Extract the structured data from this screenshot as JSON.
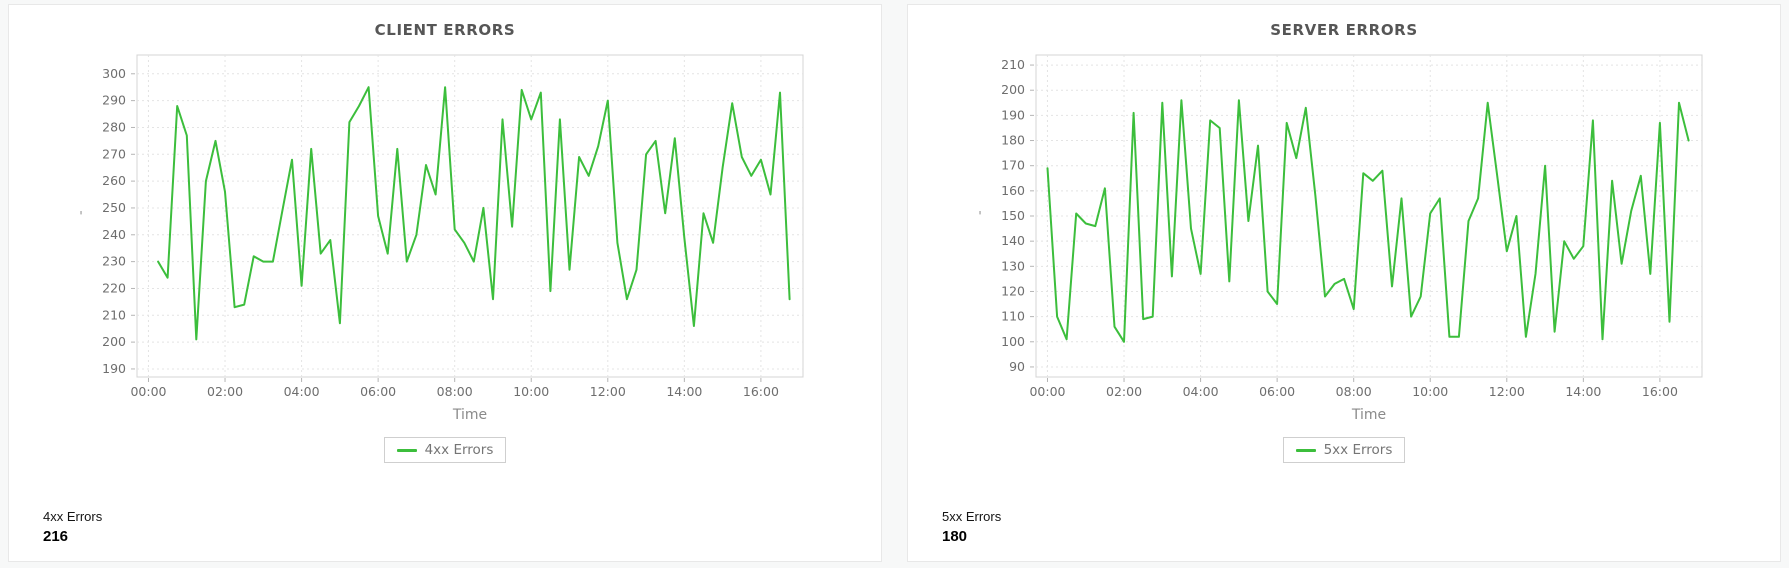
{
  "cards": [
    {
      "title": "CLIENT ERRORS",
      "legend_label": "4xx Errors",
      "stat_label": "4xx Errors",
      "stat_value": "216"
    },
    {
      "title": "SERVER ERRORS",
      "legend_label": "5xx Errors",
      "stat_label": "5xx Errors",
      "stat_value": "180"
    }
  ],
  "chart_data": [
    {
      "type": "line",
      "title": "CLIENT ERRORS",
      "xlabel": "Time",
      "ylabel_mark": "'",
      "grid": true,
      "legend_position": "bottom",
      "x_tick_labels": [
        "00:00",
        "02:00",
        "04:00",
        "06:00",
        "08:00",
        "10:00",
        "12:00",
        "14:00",
        "16:00"
      ],
      "x_tick_minutes": [
        0,
        120,
        240,
        360,
        480,
        600,
        720,
        840,
        960
      ],
      "x_domain_minutes": [
        -18,
        1026
      ],
      "y_ticks": [
        190,
        200,
        210,
        220,
        230,
        240,
        250,
        260,
        270,
        280,
        290,
        300
      ],
      "y_domain": [
        187,
        307
      ],
      "x_start_minute": 15,
      "x_step_minutes": 15,
      "series": [
        {
          "name": "4xx Errors",
          "color": "#3cbe3c",
          "values": [
            230,
            224,
            288,
            277,
            201,
            260,
            275,
            256,
            213,
            214,
            232,
            230,
            230,
            249,
            268,
            221,
            272,
            233,
            238,
            207,
            282,
            288,
            295,
            247,
            233,
            272,
            230,
            240,
            266,
            255,
            295,
            242,
            237,
            230,
            250,
            216,
            283,
            243,
            294,
            283,
            293,
            219,
            283,
            227,
            269,
            262,
            273,
            290,
            237,
            216,
            227,
            270,
            275,
            248,
            276,
            239,
            206,
            248,
            237,
            265,
            289,
            269,
            262,
            268,
            255,
            293,
            216
          ]
        }
      ]
    },
    {
      "type": "line",
      "title": "SERVER ERRORS",
      "xlabel": "Time",
      "ylabel_mark": "'",
      "grid": true,
      "legend_position": "bottom",
      "x_tick_labels": [
        "00:00",
        "02:00",
        "04:00",
        "06:00",
        "08:00",
        "10:00",
        "12:00",
        "14:00",
        "16:00"
      ],
      "x_tick_minutes": [
        0,
        120,
        240,
        360,
        480,
        600,
        720,
        840,
        960
      ],
      "x_domain_minutes": [
        -18,
        1026
      ],
      "y_ticks": [
        90,
        100,
        110,
        120,
        130,
        140,
        150,
        160,
        170,
        180,
        190,
        200,
        210
      ],
      "y_domain": [
        86,
        214
      ],
      "x_start_minute": 0,
      "x_step_minutes": 15,
      "series": [
        {
          "name": "5xx Errors",
          "color": "#3cbe3c",
          "values": [
            169,
            110,
            101,
            151,
            147,
            146,
            161,
            106,
            100,
            191,
            109,
            110,
            195,
            126,
            196,
            145,
            127,
            188,
            185,
            124,
            196,
            148,
            178,
            120,
            115,
            187,
            173,
            193,
            158,
            118,
            123,
            125,
            113,
            167,
            164,
            168,
            122,
            157,
            110,
            118,
            151,
            157,
            102,
            102,
            148,
            157,
            195,
            166,
            136,
            150,
            102,
            127,
            170,
            104,
            140,
            133,
            138,
            188,
            101,
            164,
            131,
            152,
            166,
            127,
            187,
            108,
            195,
            180
          ]
        }
      ]
    }
  ],
  "style": {
    "line_color": "#3cbe3c",
    "grid_color": "#e4e4e4",
    "plot_border_color": "#d4d4d4",
    "tick_text_color": "#6e6e6e",
    "axis_label_color": "#8a8a8a",
    "title_color": "#565656"
  }
}
